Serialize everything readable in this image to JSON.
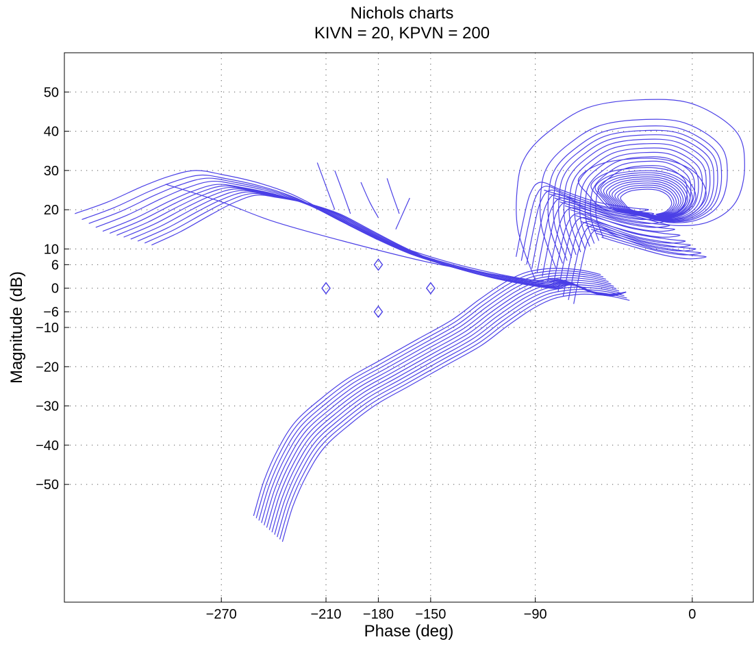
{
  "chart_data": {
    "type": "line",
    "title": "Nichols charts",
    "subtitle": "KIVN = 20, KPVN = 200",
    "xlabel": "Phase (deg)",
    "ylabel": "Magnitude (dB)",
    "xlim": [
      -360,
      35
    ],
    "ylim": [
      -80,
      60
    ],
    "xticks": [
      -270,
      -210,
      -180,
      -150,
      -90,
      0
    ],
    "yticks": [
      50,
      40,
      30,
      20,
      10,
      6,
      0,
      -6,
      -10,
      -20,
      -30,
      -40,
      -50
    ],
    "grid": true,
    "line_color": "#4a3fe6",
    "margin_markers": {
      "marker": "diamond",
      "points": [
        [
          -210,
          0
        ],
        [
          -180,
          6
        ],
        [
          -180,
          -6
        ],
        [
          -150,
          0
        ]
      ]
    },
    "series_base": {
      "upper_branch": [
        [
          -354,
          19
        ],
        [
          -335,
          22
        ],
        [
          -315,
          26
        ],
        [
          -300,
          28.5
        ],
        [
          -285,
          30
        ],
        [
          -270,
          29
        ],
        [
          -250,
          27
        ],
        [
          -230,
          24
        ],
        [
          -210,
          19.5
        ],
        [
          -190,
          15
        ],
        [
          -170,
          11
        ],
        [
          -150,
          8
        ],
        [
          -130,
          5.5
        ],
        [
          -110,
          3.5
        ],
        [
          -90,
          2
        ],
        [
          -80,
          2.5
        ],
        [
          -70,
          1.5
        ],
        [
          -60,
          -0.5
        ],
        [
          -48,
          -1.5
        ],
        [
          -38,
          -1
        ]
      ],
      "lower_branch": [
        [
          -244,
          -61
        ],
        [
          -238,
          -52
        ],
        [
          -230,
          -44
        ],
        [
          -220,
          -37
        ],
        [
          -205,
          -31
        ],
        [
          -190,
          -26
        ],
        [
          -172,
          -21.5
        ],
        [
          -150,
          -16
        ],
        [
          -130,
          -11
        ],
        [
          -115,
          -6
        ],
        [
          -100,
          -1.5
        ],
        [
          -88,
          1
        ],
        [
          -75,
          2
        ],
        [
          -65,
          2
        ],
        [
          -55,
          1.5
        ],
        [
          -45,
          0.5
        ]
      ],
      "loop_branch": [
        [
          -86,
          3
        ],
        [
          -82,
          12
        ],
        [
          -78,
          19
        ],
        [
          -72,
          22
        ],
        [
          -60,
          20
        ],
        [
          -40,
          17
        ],
        [
          -20,
          15.5
        ],
        [
          -10,
          15
        ],
        [
          -20,
          14.5
        ],
        [
          -35,
          15.5
        ],
        [
          -55,
          18
        ],
        [
          -70,
          20
        ]
      ],
      "big_loop": [
        [
          -90,
          2
        ],
        [
          -100,
          15
        ],
        [
          -100,
          27
        ],
        [
          -95,
          34
        ],
        [
          -82,
          40
        ],
        [
          -60,
          46
        ],
        [
          -30,
          48
        ],
        [
          0,
          47
        ],
        [
          25,
          40
        ],
        [
          30,
          31
        ],
        [
          25,
          22
        ],
        [
          10,
          17
        ],
        [
          -10,
          16
        ],
        [
          -30,
          18
        ],
        [
          -50,
          20
        ],
        [
          -60,
          24
        ],
        [
          -65,
          28
        ],
        [
          -50,
          32
        ],
        [
          -20,
          33
        ],
        [
          0,
          30
        ],
        [
          8,
          24
        ],
        [
          0,
          19
        ],
        [
          -15,
          17
        ]
      ]
    },
    "series": [
      {
        "upper_offset": [
          0,
          0
        ],
        "lower_offset": [
          0,
          0
        ],
        "loop_offset": [
          0,
          0
        ],
        "big_scale": 1.0
      },
      {
        "upper_offset": [
          4,
          -1.5
        ],
        "lower_offset": [
          1.5,
          -0.6
        ],
        "loop_offset": [
          3,
          -1.5
        ],
        "big_scale": 0.82
      },
      {
        "upper_offset": [
          8,
          -2.5
        ],
        "lower_offset": [
          -1.5,
          0.6
        ],
        "loop_offset": [
          -3,
          1.0
        ],
        "big_scale": 0.76
      },
      {
        "upper_offset": [
          12,
          -3.5
        ],
        "lower_offset": [
          3,
          -1.2
        ],
        "loop_offset": [
          6,
          -3
        ],
        "big_scale": 0.72
      },
      {
        "upper_offset": [
          16,
          -4.5
        ],
        "lower_offset": [
          -3,
          1.2
        ],
        "loop_offset": [
          -6,
          2
        ],
        "big_scale": 0.68
      },
      {
        "upper_offset": [
          20,
          -5
        ],
        "lower_offset": [
          4.5,
          -1.8
        ],
        "loop_offset": [
          9,
          -4
        ],
        "big_scale": 0.64
      },
      {
        "upper_offset": [
          24,
          -5.5
        ],
        "lower_offset": [
          -4.5,
          1.8
        ],
        "loop_offset": [
          -9,
          3
        ],
        "big_scale": 0.6
      },
      {
        "upper_offset": [
          28,
          -6
        ],
        "lower_offset": [
          6,
          -2.4
        ],
        "loop_offset": [
          12,
          -5
        ],
        "big_scale": 0.56
      },
      {
        "upper_offset": [
          32,
          -6.5
        ],
        "lower_offset": [
          -6,
          2.4
        ],
        "loop_offset": [
          -12,
          4
        ],
        "big_scale": 0.52
      },
      {
        "upper_offset": [
          36,
          -7
        ],
        "lower_offset": [
          7.5,
          -3
        ],
        "loop_offset": [
          15,
          -6
        ],
        "big_scale": 0.48
      },
      {
        "upper_offset": [
          40,
          -7.5
        ],
        "lower_offset": [
          -7.5,
          3
        ],
        "loop_offset": [
          -15,
          5
        ],
        "big_scale": 0.44
      },
      {
        "upper_offset": [
          44,
          -8
        ],
        "lower_offset": [
          9,
          -3.6
        ],
        "loop_offset": [
          18,
          -7
        ],
        "big_scale": 0.4
      }
    ],
    "straight_line": [
      [
        -302,
        26.5
      ],
      [
        -270,
        22
      ],
      [
        -240,
        17
      ],
      [
        -200,
        12
      ],
      [
        -150,
        6.5
      ],
      [
        -100,
        2.5
      ],
      [
        -85,
        1.8
      ]
    ],
    "short_spurs": [
      [
        [
          -215,
          32
        ],
        [
          -210,
          26
        ],
        [
          -205,
          20
        ]
      ],
      [
        [
          -205,
          30
        ],
        [
          -200,
          24
        ],
        [
          -196,
          19
        ]
      ],
      [
        [
          -190,
          27
        ],
        [
          -185,
          22
        ],
        [
          -180,
          18
        ]
      ],
      [
        [
          -175,
          28
        ],
        [
          -172,
          24
        ],
        [
          -168,
          19
        ]
      ],
      [
        [
          -162,
          23
        ],
        [
          -166,
          19
        ],
        [
          -170,
          15
        ]
      ]
    ]
  }
}
